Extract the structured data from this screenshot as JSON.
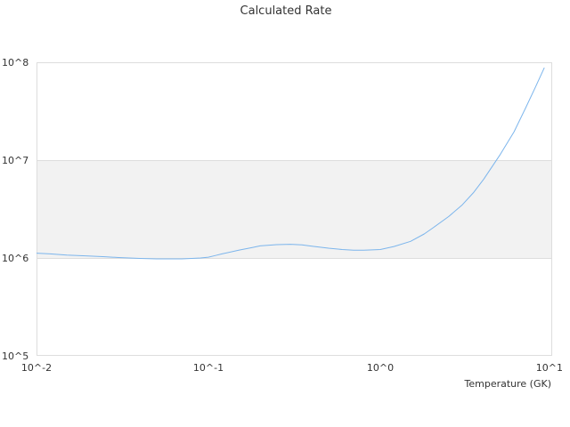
{
  "chart_data": {
    "type": "line",
    "title": "Calculated Rate",
    "xlabel": "Temperature (GK)",
    "ylabel": "",
    "x_scale": "log",
    "y_scale": "log",
    "xlim": [
      0.01,
      10
    ],
    "ylim": [
      100000,
      100000000
    ],
    "x_ticks": [
      "10^-2",
      "10^-1",
      "10^0",
      "10^1"
    ],
    "y_ticks": [
      "10^5",
      "10^6",
      "10^7",
      "10^8"
    ],
    "grid": false,
    "legend": "none",
    "alternating_band": {
      "from": 1000000,
      "to": 10000000,
      "color": "#f2f2f2"
    },
    "series": [
      {
        "color": "#7cb5ec",
        "x": [
          0.01,
          0.012,
          0.015,
          0.02,
          0.025,
          0.03,
          0.04,
          0.05,
          0.06,
          0.07,
          0.08,
          0.09,
          0.1,
          0.11,
          0.12,
          0.15,
          0.18,
          0.2,
          0.25,
          0.3,
          0.35,
          0.4,
          0.5,
          0.6,
          0.7,
          0.8,
          0.9,
          1.0,
          1.2,
          1.5,
          1.8,
          2.0,
          2.5,
          3.0,
          3.5,
          4.0,
          5.0,
          6.0,
          7.0,
          8.0,
          9.0
        ],
        "y": [
          1120000,
          1100000,
          1070000,
          1050000,
          1030000,
          1010000,
          990000,
          980000,
          980000,
          980000,
          990000,
          1000000,
          1020000,
          1060000,
          1100000,
          1200000,
          1280000,
          1330000,
          1370000,
          1380000,
          1360000,
          1320000,
          1260000,
          1220000,
          1200000,
          1200000,
          1210000,
          1220000,
          1310000,
          1480000,
          1760000,
          2000000,
          2650000,
          3500000,
          4700000,
          6400000,
          11500000,
          19500000,
          34000000,
          56000000,
          88000000
        ]
      }
    ]
  }
}
